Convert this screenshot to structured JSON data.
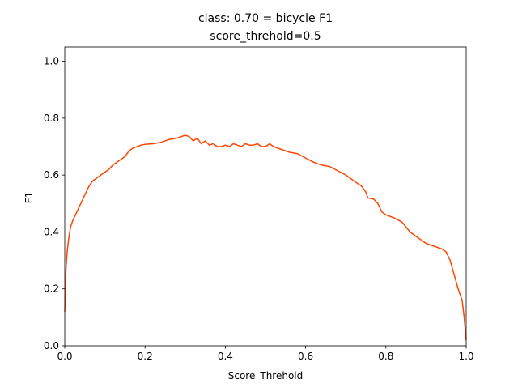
{
  "chart_data": {
    "type": "line",
    "title": "class: 0.70 = bicycle F1",
    "subtitle": "score_threhold=0.5",
    "xlabel": "Score_Threhold",
    "ylabel": "F1",
    "xlim": [
      0.0,
      1.0
    ],
    "ylim": [
      0.0,
      1.05
    ],
    "grid": false,
    "x_ticks": [
      "0.0",
      "0.2",
      "0.4",
      "0.6",
      "0.8",
      "1.0"
    ],
    "y_ticks": [
      "0.0",
      "0.2",
      "0.4",
      "0.6",
      "0.8",
      "1.0"
    ],
    "colors": {
      "line": "#ff4500",
      "axes": "#000000",
      "background": "#ffffff"
    },
    "series": [
      {
        "x": [
          0.0,
          0.003,
          0.006,
          0.01,
          0.015,
          0.02,
          0.03,
          0.04,
          0.05,
          0.06,
          0.07,
          0.08,
          0.09,
          0.1,
          0.11,
          0.12,
          0.13,
          0.14,
          0.15,
          0.16,
          0.17,
          0.18,
          0.19,
          0.2,
          0.22,
          0.24,
          0.26,
          0.28,
          0.3,
          0.31,
          0.32,
          0.33,
          0.34,
          0.35,
          0.36,
          0.37,
          0.38,
          0.39,
          0.4,
          0.41,
          0.42,
          0.43,
          0.44,
          0.45,
          0.46,
          0.47,
          0.48,
          0.49,
          0.5,
          0.51,
          0.52,
          0.54,
          0.56,
          0.58,
          0.6,
          0.62,
          0.64,
          0.66,
          0.68,
          0.7,
          0.72,
          0.74,
          0.75,
          0.755,
          0.77,
          0.78,
          0.79,
          0.8,
          0.82,
          0.84,
          0.86,
          0.88,
          0.9,
          0.92,
          0.94,
          0.95,
          0.96,
          0.97,
          0.98,
          0.99,
          0.995,
          1.0
        ],
        "y": [
          0.12,
          0.27,
          0.33,
          0.38,
          0.42,
          0.44,
          0.47,
          0.5,
          0.53,
          0.56,
          0.58,
          0.59,
          0.6,
          0.61,
          0.62,
          0.635,
          0.645,
          0.655,
          0.665,
          0.685,
          0.695,
          0.7,
          0.705,
          0.708,
          0.71,
          0.715,
          0.725,
          0.73,
          0.74,
          0.735,
          0.72,
          0.73,
          0.71,
          0.72,
          0.705,
          0.71,
          0.7,
          0.7,
          0.705,
          0.7,
          0.71,
          0.705,
          0.7,
          0.71,
          0.705,
          0.705,
          0.71,
          0.7,
          0.7,
          0.71,
          0.7,
          0.69,
          0.68,
          0.675,
          0.66,
          0.645,
          0.635,
          0.63,
          0.615,
          0.6,
          0.58,
          0.56,
          0.54,
          0.52,
          0.515,
          0.5,
          0.47,
          0.46,
          0.45,
          0.435,
          0.4,
          0.38,
          0.36,
          0.35,
          0.34,
          0.33,
          0.3,
          0.25,
          0.2,
          0.16,
          0.1,
          0.02
        ]
      }
    ]
  }
}
